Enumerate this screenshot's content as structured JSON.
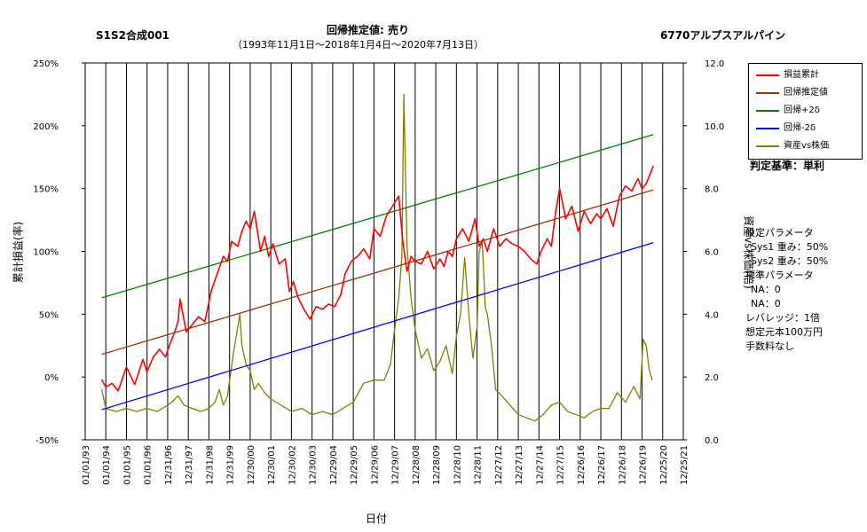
{
  "header": {
    "left_title": "S1S2合成001",
    "center_title": "回帰推定値: 売り",
    "center_subtitle": "（1993年11月1日～2018年1月4日～2020年7月13日）",
    "right_title": "6770アルプスアルパイン"
  },
  "judgement": "判定基準：単利",
  "params": {
    "heading": "設定パラメータ",
    "sys1": "Sys1 重み：50%",
    "sys2": "Sys2 重み：50%",
    "standard_heading": "標準パラメータ",
    "na1": "NA：0",
    "na2": "NA：0",
    "leverage": "レバレッジ：1倍",
    "capital": "想定元本100万円",
    "fee": "手数料なし"
  },
  "chart_data": {
    "type": "line",
    "title": "回帰推定値: 売り",
    "xlabel": "日付",
    "ylabel_left": "累計損益(率)",
    "ylabel_right": "資産vs株価(倍)",
    "x_tick_labels": [
      "01/01/93",
      "01/01/94",
      "01/01/95",
      "01/01/96",
      "12/31/96",
      "12/31/97",
      "12/31/98",
      "12/31/99",
      "12/30/00",
      "12/30/01",
      "12/30/02",
      "12/30/03",
      "12/29/04",
      "12/29/05",
      "12/29/06",
      "12/29/07",
      "12/28/08",
      "12/28/09",
      "12/28/10",
      "12/28/11",
      "12/27/12",
      "12/27/13",
      "12/27/14",
      "12/27/15",
      "12/26/16",
      "12/26/17",
      "12/26/18",
      "12/26/19",
      "12/25/20",
      "12/25/21"
    ],
    "x_range": [
      1993.0,
      2022.0
    ],
    "y_left_ticks": [
      "-50%",
      "0%",
      "50%",
      "100%",
      "150%",
      "200%",
      "250%"
    ],
    "y_left_range": [
      -50,
      250
    ],
    "y_right_ticks": [
      "0.0",
      "2.0",
      "4.0",
      "6.0",
      "8.0",
      "10.0",
      "12.0"
    ],
    "y_right_range": [
      0,
      12
    ],
    "grid": "vertical",
    "legend_position": "top-right",
    "series": [
      {
        "name": "損益累計",
        "color": "#ff0000",
        "axis": "left",
        "x": [
          1993.8,
          1994.0,
          1994.3,
          1994.6,
          1995.0,
          1995.4,
          1995.8,
          1996.0,
          1996.3,
          1996.6,
          1996.9,
          1997.1,
          1997.3,
          1997.5,
          1997.6,
          1997.9,
          1998.2,
          1998.5,
          1998.8,
          1999.1,
          1999.4,
          1999.7,
          1999.9,
          2000.1,
          2000.4,
          2000.6,
          2000.8,
          2001.0,
          2001.2,
          2001.5,
          2001.7,
          2001.9,
          2002.1,
          2002.4,
          2002.7,
          2002.9,
          2003.1,
          2003.3,
          2003.6,
          2003.9,
          2004.2,
          2004.5,
          2004.8,
          2005.1,
          2005.4,
          2005.6,
          2005.9,
          2006.2,
          2006.5,
          2006.8,
          2007.0,
          2007.3,
          2007.6,
          2007.9,
          2008.2,
          2008.4,
          2008.6,
          2008.8,
          2009.0,
          2009.3,
          2009.6,
          2009.9,
          2010.2,
          2010.4,
          2010.6,
          2010.8,
          2011.0,
          2011.3,
          2011.6,
          2011.9,
          2012.1,
          2012.3,
          2012.5,
          2012.8,
          2013.1,
          2013.4,
          2013.7,
          2014.0,
          2014.3,
          2014.6,
          2014.9,
          2015.1,
          2015.4,
          2015.6,
          2015.8,
          2016.0,
          2016.3,
          2016.6,
          2016.9,
          2017.2,
          2017.5,
          2017.8,
          2018.0,
          2018.3,
          2018.6,
          2018.9,
          2019.2,
          2019.5,
          2019.8,
          2020.0,
          2020.2,
          2020.4,
          2020.55
        ],
        "y": [
          -2,
          -8,
          -5,
          -11,
          8,
          -6,
          14,
          4,
          16,
          22,
          16,
          26,
          34,
          44,
          62,
          36,
          42,
          48,
          44,
          68,
          82,
          96,
          92,
          108,
          104,
          116,
          124,
          118,
          132,
          100,
          112,
          96,
          106,
          90,
          94,
          68,
          76,
          64,
          54,
          46,
          56,
          54,
          58,
          56,
          66,
          82,
          92,
          96,
          102,
          94,
          118,
          112,
          128,
          136,
          144,
          108,
          84,
          96,
          92,
          90,
          100,
          86,
          94,
          88,
          100,
          96,
          110,
          118,
          108,
          126,
          104,
          110,
          100,
          118,
          104,
          110,
          106,
          104,
          100,
          94,
          90,
          100,
          110,
          104,
          130,
          150,
          126,
          136,
          116,
          132,
          122,
          130,
          126,
          134,
          120,
          144,
          152,
          148,
          158,
          150,
          154,
          162,
          168
        ]
      },
      {
        "name": "回帰推定値",
        "color": "#993300",
        "axis": "left",
        "x": [
          1993.8,
          2020.55
        ],
        "y": [
          18,
          149
        ]
      },
      {
        "name": "回帰+2δ",
        "color": "#008000",
        "axis": "left",
        "x": [
          1993.8,
          2020.55
        ],
        "y": [
          63,
          193
        ]
      },
      {
        "name": "回帰-2δ",
        "color": "#0000ff",
        "axis": "left",
        "x": [
          1993.8,
          2020.55
        ],
        "y": [
          -26,
          107
        ]
      },
      {
        "name": "資産vs株価",
        "color": "#808000",
        "axis": "right",
        "x": [
          1993.8,
          1994.0,
          1994.5,
          1995.0,
          1995.5,
          1996.0,
          1996.5,
          1997.0,
          1997.2,
          1997.5,
          1997.8,
          1998.2,
          1998.6,
          1999.0,
          1999.3,
          1999.5,
          1999.7,
          1999.9,
          2000.2,
          2000.5,
          2000.6,
          2000.8,
          2001.0,
          2001.2,
          2001.4,
          2001.7,
          2002.0,
          2002.5,
          2003.0,
          2003.5,
          2004.0,
          2004.5,
          2005.0,
          2005.5,
          2006.0,
          2006.5,
          2007.0,
          2007.5,
          2007.8,
          2008.0,
          2008.2,
          2008.35,
          2008.45,
          2008.6,
          2008.8,
          2009.0,
          2009.3,
          2009.6,
          2009.9,
          2010.2,
          2010.5,
          2010.8,
          2011.0,
          2011.2,
          2011.4,
          2011.6,
          2011.8,
          2012.0,
          2012.1,
          2012.25,
          2012.4,
          2012.5,
          2012.7,
          2012.9,
          2013.2,
          2013.6,
          2014.0,
          2014.4,
          2014.8,
          2015.2,
          2015.6,
          2016.0,
          2016.4,
          2016.8,
          2017.2,
          2017.6,
          2018.0,
          2018.4,
          2018.8,
          2019.2,
          2019.6,
          2019.9,
          2020.05,
          2020.2,
          2020.35,
          2020.5
        ],
        "y": [
          1.6,
          1.0,
          0.9,
          1.0,
          0.9,
          1.0,
          0.9,
          1.1,
          1.2,
          1.4,
          1.1,
          1.0,
          0.9,
          1.0,
          1.2,
          1.6,
          1.1,
          1.4,
          2.8,
          4.0,
          3.0,
          2.4,
          2.2,
          1.6,
          1.8,
          1.5,
          1.3,
          1.1,
          0.9,
          1.0,
          0.8,
          0.9,
          0.8,
          1.0,
          1.2,
          1.8,
          1.9,
          1.9,
          2.4,
          3.5,
          4.5,
          5.8,
          11.0,
          6.2,
          4.5,
          3.5,
          2.6,
          2.9,
          2.2,
          2.5,
          3.0,
          2.1,
          3.3,
          4.0,
          5.8,
          4.0,
          2.6,
          3.6,
          6.0,
          6.3,
          4.2,
          4.0,
          3.0,
          1.6,
          1.4,
          1.1,
          0.8,
          0.7,
          0.6,
          0.8,
          1.1,
          1.2,
          0.9,
          0.8,
          0.7,
          0.9,
          1.0,
          1.0,
          1.5,
          1.2,
          1.7,
          1.3,
          3.2,
          3.0,
          2.2,
          1.9
        ]
      }
    ]
  }
}
